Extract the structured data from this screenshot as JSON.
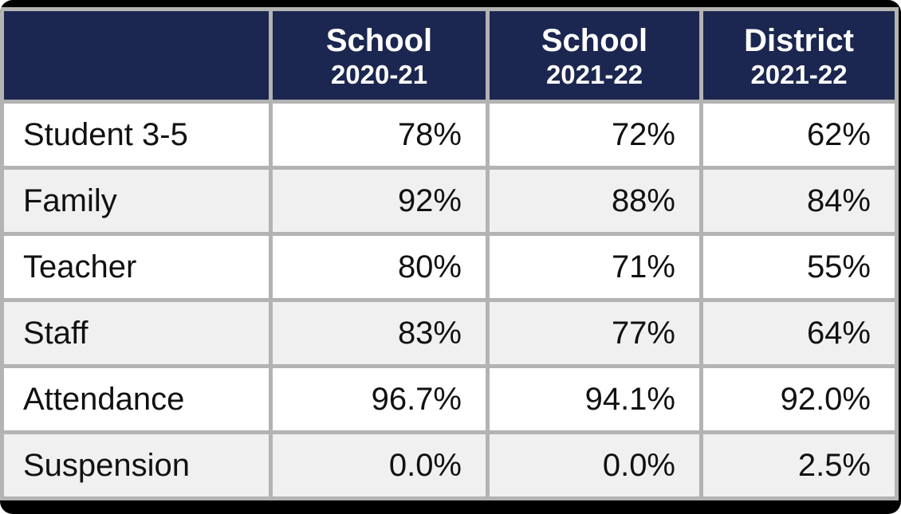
{
  "table": {
    "columns": [
      {
        "label": "",
        "sublabel": ""
      },
      {
        "label": "School",
        "sublabel": "2020-21"
      },
      {
        "label": "School",
        "sublabel": "2021-22"
      },
      {
        "label": "District",
        "sublabel": "2021-22"
      }
    ],
    "rows": [
      {
        "label": "Student 3-5",
        "values": [
          "78%",
          "72%",
          "62%"
        ]
      },
      {
        "label": "Family",
        "values": [
          "92%",
          "88%",
          "84%"
        ]
      },
      {
        "label": "Teacher",
        "values": [
          "80%",
          "71%",
          "55%"
        ]
      },
      {
        "label": "Staff",
        "values": [
          "83%",
          "77%",
          "64%"
        ]
      },
      {
        "label": "Attendance",
        "values": [
          "96.7%",
          "94.1%",
          "92.0%"
        ]
      },
      {
        "label": "Suspension",
        "values": [
          "0.0%",
          "0.0%",
          "2.5%"
        ]
      }
    ],
    "colors": {
      "header_bg": "#1b2750",
      "header_text": "#ffffff",
      "border": "#b3b3b3",
      "row_bg": "#ffffff",
      "row_alt_bg": "#f0f0f0",
      "cell_text": "#111111",
      "frame": "#000000"
    }
  }
}
